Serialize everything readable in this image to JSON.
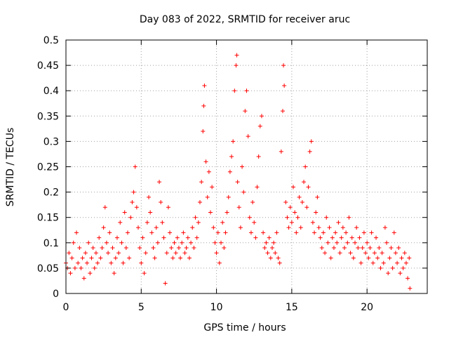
{
  "chart_data": {
    "type": "scatter",
    "title": "Day 083 of 2022, SRMTID for receiver aruc",
    "xlabel": "GPS time / hours",
    "ylabel": "SRMTID / TECUs",
    "xlim": [
      0,
      24
    ],
    "ylim": [
      0,
      0.5
    ],
    "xticks": [
      0,
      5,
      10,
      15,
      20
    ],
    "xtick_labels": [
      "0",
      "5",
      "10",
      "15",
      "20"
    ],
    "yticks": [
      0,
      0.05,
      0.1,
      0.15,
      0.2,
      0.25,
      0.3,
      0.35,
      0.4,
      0.45,
      0.5
    ],
    "ytick_labels": [
      "0",
      "0.05",
      "0.1",
      "0.15",
      "0.2",
      "0.25",
      "0.3",
      "0.35",
      "0.4",
      "0.45",
      "0.5"
    ],
    "grid": true,
    "marker": "+",
    "series": [
      {
        "name": "SRMTID",
        "color": "#ff0000",
        "points": [
          [
            0.0,
            0.06
          ],
          [
            0.1,
            0.05
          ],
          [
            0.2,
            0.08
          ],
          [
            0.3,
            0.04
          ],
          [
            0.4,
            0.07
          ],
          [
            0.5,
            0.1
          ],
          [
            0.6,
            0.05
          ],
          [
            0.7,
            0.12
          ],
          [
            0.8,
            0.06
          ],
          [
            0.9,
            0.09
          ],
          [
            1.0,
            0.05
          ],
          [
            1.1,
            0.07
          ],
          [
            1.2,
            0.03
          ],
          [
            1.3,
            0.08
          ],
          [
            1.4,
            0.06
          ],
          [
            1.5,
            0.1
          ],
          [
            1.6,
            0.04
          ],
          [
            1.7,
            0.07
          ],
          [
            1.8,
            0.09
          ],
          [
            1.9,
            0.05
          ],
          [
            2.0,
            0.08
          ],
          [
            2.1,
            0.06
          ],
          [
            2.2,
            0.11
          ],
          [
            2.3,
            0.07
          ],
          [
            2.4,
            0.09
          ],
          [
            2.5,
            0.13
          ],
          [
            2.6,
            0.17
          ],
          [
            2.7,
            0.1
          ],
          [
            2.8,
            0.08
          ],
          [
            2.9,
            0.12
          ],
          [
            3.0,
            0.06
          ],
          [
            3.1,
            0.09
          ],
          [
            3.2,
            0.04
          ],
          [
            3.3,
            0.07
          ],
          [
            3.4,
            0.11
          ],
          [
            3.5,
            0.08
          ],
          [
            3.6,
            0.14
          ],
          [
            3.7,
            0.1
          ],
          [
            3.8,
            0.06
          ],
          [
            3.9,
            0.16
          ],
          [
            4.0,
            0.09
          ],
          [
            4.1,
            0.12
          ],
          [
            4.2,
            0.07
          ],
          [
            4.3,
            0.15
          ],
          [
            4.4,
            0.18
          ],
          [
            4.5,
            0.2
          ],
          [
            4.6,
            0.25
          ],
          [
            4.7,
            0.17
          ],
          [
            4.8,
            0.13
          ],
          [
            4.9,
            0.09
          ],
          [
            5.0,
            0.06
          ],
          [
            5.1,
            0.11
          ],
          [
            5.2,
            0.04
          ],
          [
            5.3,
            0.08
          ],
          [
            5.4,
            0.14
          ],
          [
            5.5,
            0.19
          ],
          [
            5.6,
            0.16
          ],
          [
            5.7,
            0.12
          ],
          [
            5.8,
            0.09
          ],
          [
            5.9,
            0.07
          ],
          [
            6.0,
            0.13
          ],
          [
            6.1,
            0.1
          ],
          [
            6.2,
            0.22
          ],
          [
            6.3,
            0.18
          ],
          [
            6.4,
            0.14
          ],
          [
            6.5,
            0.11
          ],
          [
            6.6,
            0.02
          ],
          [
            6.7,
            0.08
          ],
          [
            6.8,
            0.17
          ],
          [
            6.9,
            0.12
          ],
          [
            7.0,
            0.09
          ],
          [
            7.1,
            0.07
          ],
          [
            7.2,
            0.1
          ],
          [
            7.3,
            0.08
          ],
          [
            7.4,
            0.11
          ],
          [
            7.5,
            0.09
          ],
          [
            7.6,
            0.07
          ],
          [
            7.7,
            0.1
          ],
          [
            7.8,
            0.12
          ],
          [
            7.9,
            0.08
          ],
          [
            8.0,
            0.09
          ],
          [
            8.1,
            0.11
          ],
          [
            8.2,
            0.07
          ],
          [
            8.3,
            0.1
          ],
          [
            8.4,
            0.13
          ],
          [
            8.5,
            0.09
          ],
          [
            8.6,
            0.15
          ],
          [
            8.7,
            0.11
          ],
          [
            8.8,
            0.14
          ],
          [
            8.9,
            0.18
          ],
          [
            9.0,
            0.22
          ],
          [
            9.1,
            0.32
          ],
          [
            9.15,
            0.37
          ],
          [
            9.2,
            0.41
          ],
          [
            9.3,
            0.26
          ],
          [
            9.4,
            0.19
          ],
          [
            9.5,
            0.24
          ],
          [
            9.6,
            0.16
          ],
          [
            9.7,
            0.21
          ],
          [
            9.8,
            0.13
          ],
          [
            9.9,
            0.1
          ],
          [
            10.0,
            0.08
          ],
          [
            10.1,
            0.12
          ],
          [
            10.2,
            0.06
          ],
          [
            10.3,
            0.1
          ],
          [
            10.4,
            0.14
          ],
          [
            10.5,
            0.09
          ],
          [
            10.6,
            0.12
          ],
          [
            10.7,
            0.16
          ],
          [
            10.8,
            0.19
          ],
          [
            10.9,
            0.24
          ],
          [
            11.0,
            0.27
          ],
          [
            11.1,
            0.3
          ],
          [
            11.2,
            0.4
          ],
          [
            11.3,
            0.45
          ],
          [
            11.35,
            0.47
          ],
          [
            11.4,
            0.22
          ],
          [
            11.5,
            0.17
          ],
          [
            11.6,
            0.13
          ],
          [
            11.7,
            0.25
          ],
          [
            11.8,
            0.2
          ],
          [
            11.9,
            0.36
          ],
          [
            12.0,
            0.4
          ],
          [
            12.1,
            0.31
          ],
          [
            12.2,
            0.15
          ],
          [
            12.3,
            0.12
          ],
          [
            12.4,
            0.18
          ],
          [
            12.5,
            0.14
          ],
          [
            12.6,
            0.11
          ],
          [
            12.7,
            0.21
          ],
          [
            12.8,
            0.27
          ],
          [
            12.9,
            0.33
          ],
          [
            13.0,
            0.35
          ],
          [
            13.1,
            0.12
          ],
          [
            13.2,
            0.09
          ],
          [
            13.3,
            0.1
          ],
          [
            13.4,
            0.08
          ],
          [
            13.5,
            0.11
          ],
          [
            13.6,
            0.07
          ],
          [
            13.7,
            0.09
          ],
          [
            13.8,
            0.1
          ],
          [
            13.9,
            0.08
          ],
          [
            14.0,
            0.12
          ],
          [
            14.1,
            0.07
          ],
          [
            14.2,
            0.06
          ],
          [
            14.3,
            0.28
          ],
          [
            14.4,
            0.36
          ],
          [
            14.45,
            0.45
          ],
          [
            14.5,
            0.41
          ],
          [
            14.6,
            0.18
          ],
          [
            14.7,
            0.15
          ],
          [
            14.8,
            0.13
          ],
          [
            14.9,
            0.17
          ],
          [
            15.0,
            0.14
          ],
          [
            15.1,
            0.21
          ],
          [
            15.2,
            0.16
          ],
          [
            15.3,
            0.12
          ],
          [
            15.4,
            0.15
          ],
          [
            15.5,
            0.19
          ],
          [
            15.6,
            0.13
          ],
          [
            15.7,
            0.18
          ],
          [
            15.8,
            0.22
          ],
          [
            15.9,
            0.25
          ],
          [
            16.0,
            0.17
          ],
          [
            16.1,
            0.21
          ],
          [
            16.2,
            0.28
          ],
          [
            16.3,
            0.3
          ],
          [
            16.4,
            0.14
          ],
          [
            16.5,
            0.12
          ],
          [
            16.6,
            0.16
          ],
          [
            16.7,
            0.19
          ],
          [
            16.8,
            0.13
          ],
          [
            16.9,
            0.11
          ],
          [
            17.0,
            0.09
          ],
          [
            17.1,
            0.12
          ],
          [
            17.2,
            0.08
          ],
          [
            17.3,
            0.15
          ],
          [
            17.4,
            0.1
          ],
          [
            17.5,
            0.13
          ],
          [
            17.6,
            0.07
          ],
          [
            17.7,
            0.11
          ],
          [
            17.8,
            0.09
          ],
          [
            17.9,
            0.12
          ],
          [
            18.0,
            0.1
          ],
          [
            18.1,
            0.14
          ],
          [
            18.2,
            0.08
          ],
          [
            18.3,
            0.11
          ],
          [
            18.4,
            0.13
          ],
          [
            18.5,
            0.09
          ],
          [
            18.6,
            0.12
          ],
          [
            18.7,
            0.1
          ],
          [
            18.8,
            0.15
          ],
          [
            18.9,
            0.08
          ],
          [
            19.0,
            0.11
          ],
          [
            19.1,
            0.07
          ],
          [
            19.2,
            0.1
          ],
          [
            19.3,
            0.13
          ],
          [
            19.4,
            0.09
          ],
          [
            19.5,
            0.11
          ],
          [
            19.6,
            0.06
          ],
          [
            19.7,
            0.09
          ],
          [
            19.8,
            0.12
          ],
          [
            19.9,
            0.08
          ],
          [
            20.0,
            0.1
          ],
          [
            20.1,
            0.07
          ],
          [
            20.2,
            0.09
          ],
          [
            20.3,
            0.12
          ],
          [
            20.4,
            0.06
          ],
          [
            20.5,
            0.08
          ],
          [
            20.6,
            0.11
          ],
          [
            20.7,
            0.07
          ],
          [
            20.8,
            0.09
          ],
          [
            20.9,
            0.05
          ],
          [
            21.0,
            0.08
          ],
          [
            21.1,
            0.06
          ],
          [
            21.2,
            0.13
          ],
          [
            21.3,
            0.1
          ],
          [
            21.4,
            0.04
          ],
          [
            21.5,
            0.07
          ],
          [
            21.6,
            0.09
          ],
          [
            21.7,
            0.05
          ],
          [
            21.8,
            0.12
          ],
          [
            21.9,
            0.08
          ],
          [
            22.0,
            0.06
          ],
          [
            22.1,
            0.09
          ],
          [
            22.2,
            0.04
          ],
          [
            22.3,
            0.07
          ],
          [
            22.4,
            0.05
          ],
          [
            22.5,
            0.08
          ],
          [
            22.6,
            0.06
          ],
          [
            22.7,
            0.03
          ],
          [
            22.8,
            0.07
          ],
          [
            22.85,
            0.01
          ]
        ]
      }
    ]
  }
}
